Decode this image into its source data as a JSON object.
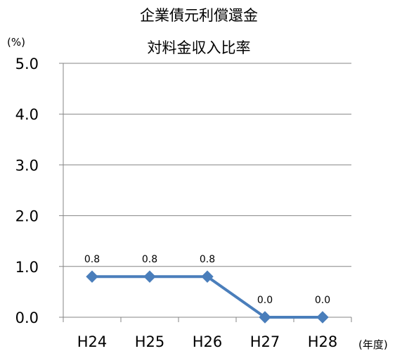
{
  "chart_data": {
    "type": "line",
    "title_lines": [
      "企業債元利償還金",
      "対料金収入比率"
    ],
    "ylabel": "(%)",
    "xlabel": "(年度)",
    "categories": [
      "H24",
      "H25",
      "H26",
      "H27",
      "H28"
    ],
    "series": [
      {
        "values": [
          0.8,
          0.8,
          0.8,
          0.0,
          0.0
        ],
        "data_labels": [
          "0.8",
          "0.8",
          "0.8",
          "0.0",
          "0.0"
        ],
        "color": "#4a7ebb",
        "marker": "diamond"
      }
    ],
    "ylim": [
      0,
      5
    ],
    "yticks": [
      0,
      1,
      2,
      3,
      4,
      5
    ],
    "ytick_labels": [
      "0.0",
      "1.0",
      "2.0",
      "3.0",
      "4.0",
      "5.0"
    ],
    "grid": true,
    "gridline_color": "#868686",
    "axis_color": "#868686"
  }
}
